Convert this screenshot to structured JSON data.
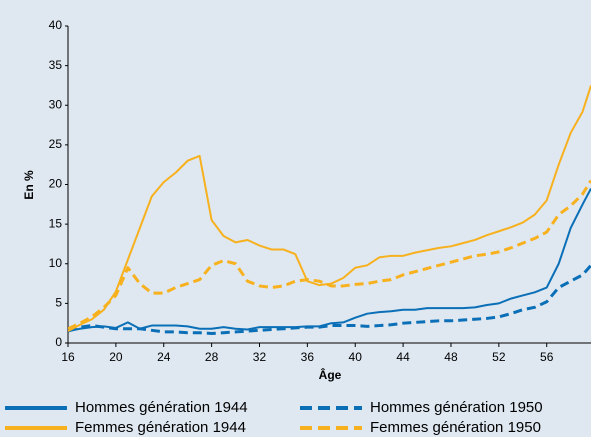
{
  "chart_data": {
    "type": "line",
    "ylabel": "En %",
    "xlabel": "Âge",
    "x": [
      16,
      17,
      18,
      19,
      20,
      21,
      22,
      23,
      24,
      25,
      26,
      27,
      28,
      29,
      30,
      31,
      32,
      33,
      34,
      35,
      36,
      37,
      38,
      39,
      40,
      41,
      42,
      43,
      44,
      45,
      46,
      47,
      48,
      49,
      50,
      51,
      52,
      53,
      54,
      55,
      56,
      57,
      58,
      59,
      59.7
    ],
    "series": [
      {
        "name": "Hommes génération 1944",
        "color": "#0a6fb7",
        "style": "solid",
        "values": [
          1.5,
          1.8,
          2.0,
          2.1,
          1.9,
          2.6,
          1.8,
          2.2,
          2.2,
          2.2,
          2.1,
          1.8,
          1.8,
          2.0,
          1.8,
          1.7,
          2.0,
          2.0,
          2.0,
          2.0,
          2.1,
          2.1,
          2.5,
          2.6,
          3.2,
          3.7,
          3.9,
          4.0,
          4.2,
          4.2,
          4.4,
          4.4,
          4.4,
          4.4,
          4.5,
          4.8,
          5.0,
          5.6,
          6.0,
          6.4,
          7.0,
          10,
          14.5,
          17.5,
          19.5
        ]
      },
      {
        "name": "Hommes génération 1950",
        "color": "#0a6fb7",
        "style": "dashed",
        "values": [
          1.5,
          2.0,
          2.2,
          2.0,
          1.8,
          1.8,
          1.8,
          1.6,
          1.4,
          1.4,
          1.3,
          1.3,
          1.2,
          1.3,
          1.4,
          1.5,
          1.6,
          1.7,
          1.8,
          1.9,
          2.0,
          2.0,
          2.2,
          2.2,
          2.2,
          2.1,
          2.2,
          2.3,
          2.5,
          2.6,
          2.7,
          2.8,
          2.8,
          2.9,
          3.0,
          3.1,
          3.3,
          3.7,
          4.2,
          4.5,
          5.2,
          7.0,
          7.8,
          8.6,
          9.8
        ]
      },
      {
        "name": "Femmes génération 1944",
        "color": "#f7b11e",
        "style": "solid",
        "values": [
          1.5,
          2.3,
          3.0,
          4.2,
          6.5,
          10.5,
          14.5,
          18.5,
          20.3,
          21.5,
          23.0,
          23.6,
          15.5,
          13.5,
          12.7,
          13.0,
          12.3,
          11.8,
          11.8,
          11.2,
          7.8,
          7.3,
          7.5,
          8.2,
          9.5,
          9.8,
          10.8,
          11.0,
          11.0,
          11.4,
          11.7,
          12.0,
          12.2,
          12.6,
          13.0,
          13.6,
          14.1,
          14.6,
          15.2,
          16.2,
          18.0,
          22.5,
          26.5,
          29.2,
          32.5
        ]
      },
      {
        "name": "Femmes génération 1950",
        "color": "#f7b11e",
        "style": "dashed",
        "values": [
          1.8,
          2.5,
          3.3,
          4.5,
          6.0,
          9.5,
          7.5,
          6.3,
          6.3,
          7.0,
          7.5,
          8.0,
          9.8,
          10.4,
          10.0,
          7.8,
          7.2,
          7.0,
          7.2,
          7.8,
          8.0,
          7.8,
          7.2,
          7.2,
          7.4,
          7.5,
          7.8,
          8.0,
          8.6,
          9.0,
          9.4,
          9.8,
          10.2,
          10.6,
          11.0,
          11.2,
          11.5,
          12.0,
          12.6,
          13.2,
          14.0,
          16.2,
          17.3,
          18.8,
          20.5
        ]
      }
    ],
    "xlim": [
      16,
      59.7
    ],
    "xticks": [
      16,
      20,
      24,
      28,
      32,
      36,
      40,
      44,
      48,
      52,
      56
    ],
    "ylim": [
      0,
      40
    ],
    "yticks": [
      0,
      5,
      10,
      15,
      20,
      25,
      30,
      35,
      40
    ],
    "grid": false,
    "legend": "bottom"
  }
}
